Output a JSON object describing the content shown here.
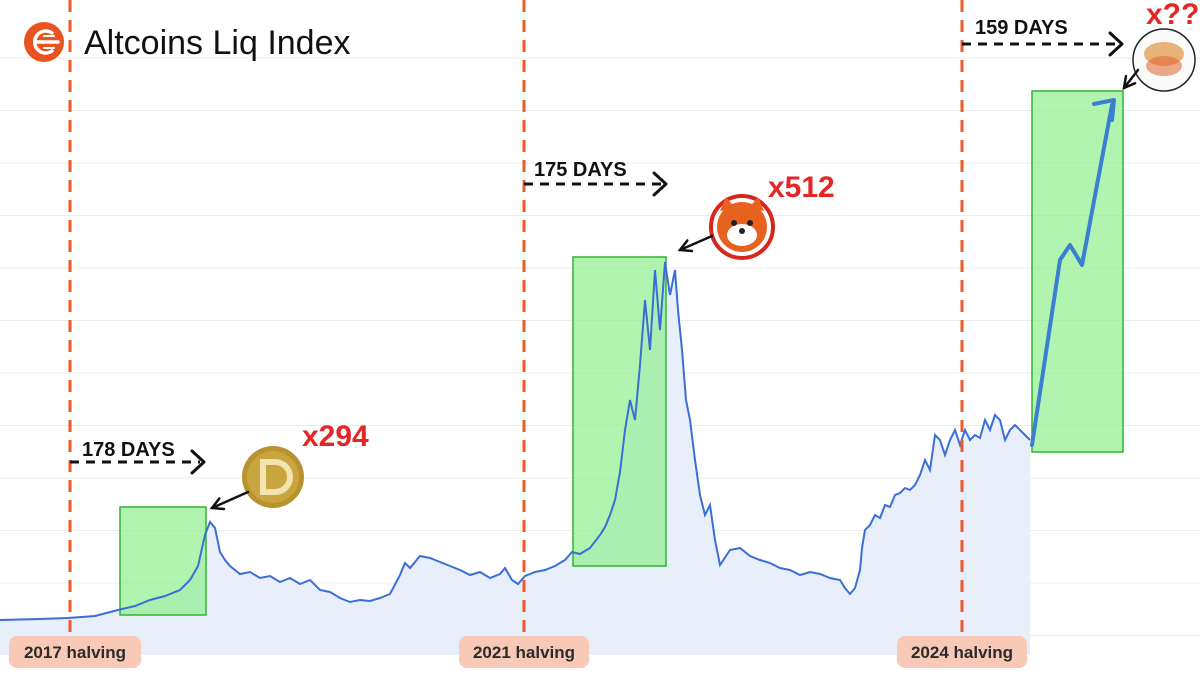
{
  "header": {
    "title": "Altcoins Liq Index",
    "logo_icon": "liquidity-index-logo-icon",
    "logo_color": "#e8531f"
  },
  "colors": {
    "line": "#3b6fd8",
    "area": "#e9eefb",
    "halving_line": "#ef5a2a",
    "highlight_fill": "#8ef08e",
    "highlight_stroke": "#2fb52f",
    "label_bg": "#f7c9b6",
    "multiplier": "#e52626",
    "grid": "#ececec"
  },
  "chart_data": {
    "type": "line",
    "title": "Altcoins Liq Index",
    "grid": "horizontal",
    "halvings": [
      {
        "label": "2017 halving",
        "x": 70
      },
      {
        "label": "2021 halving",
        "x": 524
      },
      {
        "label": "2024 halving",
        "x": 962
      }
    ],
    "series": [
      {
        "x": [
          0,
          40,
          68,
          95,
          118,
          135,
          150,
          165,
          180,
          190,
          198,
          205,
          210,
          215,
          220,
          225,
          230,
          240,
          250,
          260,
          270,
          280,
          290,
          300,
          310,
          320,
          330,
          340,
          350,
          360,
          370,
          380,
          390,
          400,
          405,
          410,
          420,
          430,
          440,
          450,
          460,
          470,
          480,
          490,
          500,
          505,
          512,
          518,
          525,
          535,
          545,
          555,
          565,
          572,
          580,
          590,
          600,
          605,
          610,
          615,
          620,
          625,
          630,
          635,
          640,
          645,
          650,
          655,
          660,
          665,
          670,
          675,
          678,
          682,
          686,
          690,
          695,
          700,
          705,
          710,
          715,
          720,
          730,
          740,
          750,
          760,
          770,
          780,
          790,
          800,
          810,
          820,
          830,
          840,
          845,
          850,
          855,
          860,
          862,
          865,
          870,
          875,
          880,
          885,
          890,
          895,
          900,
          905,
          910,
          915,
          920,
          925,
          930,
          935,
          940,
          945,
          950,
          955,
          960,
          965,
          970,
          975,
          980,
          985,
          990,
          995,
          1000,
          1005,
          1010,
          1015,
          1020,
          1025,
          1030
        ],
        "y": [
          620,
          619,
          618,
          616,
          610,
          606,
          600,
          596,
          590,
          580,
          566,
          535,
          522,
          528,
          552,
          560,
          566,
          574,
          572,
          578,
          576,
          582,
          578,
          584,
          580,
          590,
          592,
          598,
          602,
          600,
          601,
          598,
          594,
          575,
          563,
          568,
          556,
          558,
          562,
          566,
          570,
          575,
          572,
          578,
          574,
          568,
          580,
          584,
          576,
          572,
          570,
          566,
          560,
          552,
          554,
          548,
          535,
          527,
          515,
          500,
          472,
          430,
          400,
          420,
          365,
          300,
          350,
          270,
          330,
          262,
          295,
          270,
          310,
          350,
          400,
          420,
          460,
          495,
          515,
          505,
          540,
          565,
          550,
          548,
          556,
          560,
          563,
          568,
          570,
          575,
          572,
          574,
          578,
          580,
          588,
          594,
          588,
          570,
          548,
          530,
          525,
          515,
          518,
          505,
          507,
          495,
          493,
          488,
          490,
          485,
          475,
          460,
          470,
          435,
          440,
          455,
          440,
          430,
          445,
          430,
          440,
          435,
          438,
          420,
          430,
          415,
          420,
          440,
          430,
          425,
          430,
          435,
          440
        ]
      }
    ],
    "projection": [
      [
        1032,
        445
      ],
      [
        1060,
        260
      ],
      [
        1070,
        245
      ],
      [
        1082,
        265
      ],
      [
        1112,
        105
      ]
    ],
    "highlights": [
      {
        "label": "178 DAYS",
        "multiplier": "x294",
        "coin_icon": "dogecoin-icon",
        "coin_color": "#c9a540"
      },
      {
        "label": "175 DAYS",
        "multiplier": "x512",
        "coin_icon": "shiba-inu-icon",
        "coin_color": "#e8621f"
      },
      {
        "label": "159 DAYS",
        "multiplier": "x???",
        "coin_icon": "mystery-coin-icon",
        "coin_color": "#e39a4c"
      }
    ]
  }
}
